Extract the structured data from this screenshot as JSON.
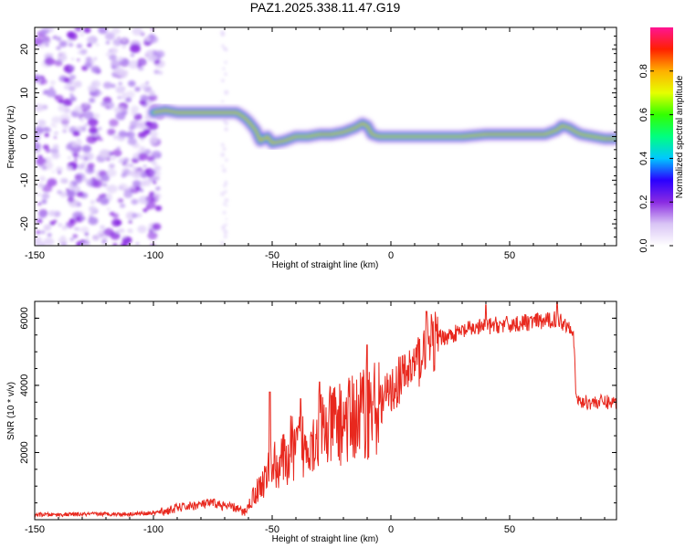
{
  "title": "PAZ1.2025.338.11.47.G19",
  "chart_data": [
    {
      "type": "heatmap",
      "title": "PAZ1.2025.338.11.47.G19",
      "xlabel": "Height of straight line (km)",
      "ylabel": "Frequency (Hz)",
      "xlim": [
        -150,
        95
      ],
      "ylim": [
        -25,
        25
      ],
      "xticks": [
        -150,
        -100,
        -50,
        0,
        50
      ],
      "yticks": [
        -20,
        -10,
        0,
        10,
        20
      ],
      "ridge": {
        "x": [
          -100,
          -95,
          -90,
          -85,
          -80,
          -75,
          -70,
          -65,
          -62,
          -60,
          -57,
          -55,
          -52,
          -50,
          -45,
          -40,
          -35,
          -30,
          -25,
          -20,
          -15,
          -12,
          -10,
          -8,
          -5,
          0,
          5,
          10,
          20,
          30,
          40,
          50,
          60,
          65,
          70,
          72,
          75,
          78,
          80,
          85,
          90,
          95
        ],
        "f": [
          5.5,
          6,
          5.5,
          5.5,
          5.5,
          5.5,
          5.5,
          5.5,
          4.5,
          3.5,
          1.5,
          -1,
          0,
          -1.5,
          -1,
          0,
          0,
          0.5,
          0.5,
          1,
          2,
          3,
          2.5,
          0.5,
          0,
          0,
          0,
          0,
          0,
          0,
          0.5,
          0.5,
          0.5,
          0.5,
          1.5,
          2.5,
          2,
          1,
          0.5,
          0,
          -0.5,
          -0.5
        ]
      },
      "noise_region": [
        -150,
        -97
      ],
      "colorbar": {
        "label": "Normalized spectral amplitude",
        "ticks": [
          "0.0",
          "0.2",
          "0.4",
          "0.6",
          "0.8"
        ],
        "tick_values": [
          0.0,
          0.2,
          0.4,
          0.6,
          0.8
        ],
        "range": [
          0,
          1
        ],
        "colors": [
          "#ffffff",
          "#d9c4f5",
          "#8a2be2",
          "#2a00ff",
          "#00c8ff",
          "#00ff80",
          "#33ff00",
          "#e6ff00",
          "#ffb000",
          "#ff2000",
          "#ff1493"
        ]
      }
    },
    {
      "type": "line",
      "xlabel": "Height of straight line (km)",
      "ylabel": "SNR (10 * v/v)",
      "xlim": [
        -150,
        95
      ],
      "ylim": [
        0,
        6500
      ],
      "xticks": [
        -150,
        -100,
        -50,
        0,
        50
      ],
      "yticks": [
        2000,
        4000,
        6000
      ],
      "series": [
        {
          "name": "SNR",
          "color": "#e8281e",
          "x": [
            -150,
            -140,
            -130,
            -120,
            -110,
            -100,
            -95,
            -90,
            -85,
            -80,
            -75,
            -70,
            -65,
            -62,
            -60,
            -58,
            -56,
            -54,
            -52,
            -50,
            -48,
            -46,
            -44,
            -42,
            -40,
            -38,
            -36,
            -34,
            -32,
            -30,
            -28,
            -26,
            -24,
            -22,
            -20,
            -18,
            -16,
            -14,
            -12,
            -10,
            -8,
            -6,
            -4,
            -2,
            0,
            2,
            4,
            6,
            8,
            10,
            12,
            14,
            16,
            18,
            20,
            25,
            30,
            35,
            40,
            45,
            50,
            55,
            60,
            65,
            70,
            72,
            74,
            76,
            77,
            78,
            80,
            85,
            90,
            95
          ],
          "y": [
            150,
            150,
            160,
            170,
            170,
            200,
            250,
            350,
            400,
            450,
            500,
            400,
            350,
            200,
            400,
            700,
            900,
            1100,
            1300,
            1800,
            1500,
            1900,
            1600,
            2200,
            2000,
            2400,
            2000,
            2600,
            2300,
            2800,
            2600,
            2700,
            2900,
            2800,
            3000,
            2900,
            3100,
            3000,
            3300,
            3200,
            3400,
            3300,
            3500,
            3700,
            3800,
            4000,
            4200,
            4300,
            4500,
            4600,
            4800,
            5000,
            5100,
            5300,
            5400,
            5500,
            5600,
            5700,
            5750,
            5800,
            5800,
            5850,
            5900,
            5900,
            6000,
            5900,
            5800,
            5800,
            5400,
            3600,
            3500,
            3500,
            3500,
            3500
          ],
          "spikes": [
            {
              "x": -51,
              "y": 3800
            },
            {
              "x": -38,
              "y": 3600
            },
            {
              "x": -30,
              "y": 4100
            },
            {
              "x": -10,
              "y": 5200
            },
            {
              "x": 15,
              "y": 6200
            },
            {
              "x": 40,
              "y": 6400
            },
            {
              "x": 70,
              "y": 6500
            }
          ]
        }
      ]
    }
  ]
}
